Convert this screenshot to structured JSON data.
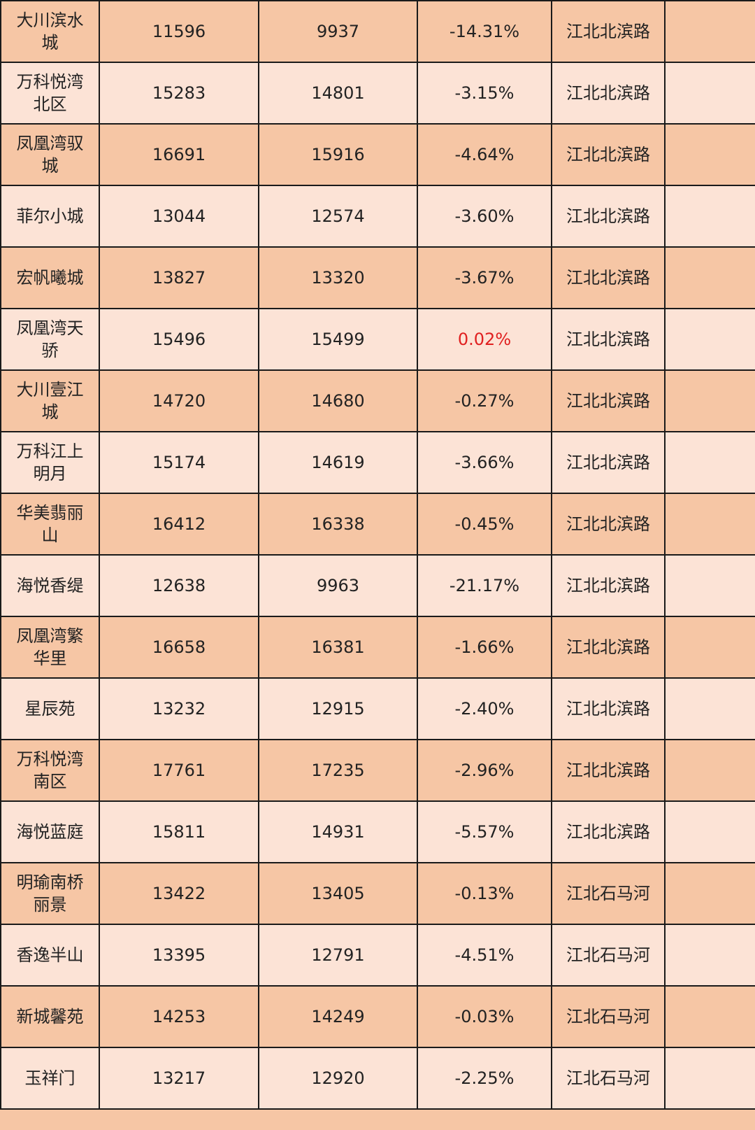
{
  "colors": {
    "row_dark": "#f6c6a5",
    "row_light": "#fce3d6",
    "positive_change": "#e02020",
    "border": "#1a1a1a"
  },
  "rows": [
    {
      "name": "大川滨水城",
      "v1": "11596",
      "v2": "9937",
      "change": "-14.31%",
      "area": "江北北滨路",
      "extra": ""
    },
    {
      "name": "万科悦湾北区",
      "v1": "15283",
      "v2": "14801",
      "change": "-3.15%",
      "area": "江北北滨路",
      "extra": ""
    },
    {
      "name": "凤凰湾驭城",
      "v1": "16691",
      "v2": "15916",
      "change": "-4.64%",
      "area": "江北北滨路",
      "extra": ""
    },
    {
      "name": "菲尔小城",
      "v1": "13044",
      "v2": "12574",
      "change": "-3.60%",
      "area": "江北北滨路",
      "extra": ""
    },
    {
      "name": "宏帆曦城",
      "v1": "13827",
      "v2": "13320",
      "change": "-3.67%",
      "area": "江北北滨路",
      "extra": ""
    },
    {
      "name": "凤凰湾天骄",
      "v1": "15496",
      "v2": "15499",
      "change": "0.02%",
      "area": "江北北滨路",
      "extra": ""
    },
    {
      "name": "大川壹江城",
      "v1": "14720",
      "v2": "14680",
      "change": "-0.27%",
      "area": "江北北滨路",
      "extra": ""
    },
    {
      "name": "万科江上明月",
      "v1": "15174",
      "v2": "14619",
      "change": "-3.66%",
      "area": "江北北滨路",
      "extra": ""
    },
    {
      "name": "华美翡丽山",
      "v1": "16412",
      "v2": "16338",
      "change": "-0.45%",
      "area": "江北北滨路",
      "extra": ""
    },
    {
      "name": "海悦香缇",
      "v1": "12638",
      "v2": "9963",
      "change": "-21.17%",
      "area": "江北北滨路",
      "extra": ""
    },
    {
      "name": "凤凰湾繁华里",
      "v1": "16658",
      "v2": "16381",
      "change": "-1.66%",
      "area": "江北北滨路",
      "extra": ""
    },
    {
      "name": "星辰苑",
      "v1": "13232",
      "v2": "12915",
      "change": "-2.40%",
      "area": "江北北滨路",
      "extra": ""
    },
    {
      "name": "万科悦湾南区",
      "v1": "17761",
      "v2": "17235",
      "change": "-2.96%",
      "area": "江北北滨路",
      "extra": ""
    },
    {
      "name": "海悦蓝庭",
      "v1": "15811",
      "v2": "14931",
      "change": "-5.57%",
      "area": "江北北滨路",
      "extra": ""
    },
    {
      "name": "明瑜南桥丽景",
      "v1": "13422",
      "v2": "13405",
      "change": "-0.13%",
      "area": "江北石马河",
      "extra": ""
    },
    {
      "name": "香逸半山",
      "v1": "13395",
      "v2": "12791",
      "change": "-4.51%",
      "area": "江北石马河",
      "extra": ""
    },
    {
      "name": "新城馨苑",
      "v1": "14253",
      "v2": "14249",
      "change": "-0.03%",
      "area": "江北石马河",
      "extra": ""
    },
    {
      "name": "玉祥门",
      "v1": "13217",
      "v2": "12920",
      "change": "-2.25%",
      "area": "江北石马河",
      "extra": ""
    }
  ]
}
